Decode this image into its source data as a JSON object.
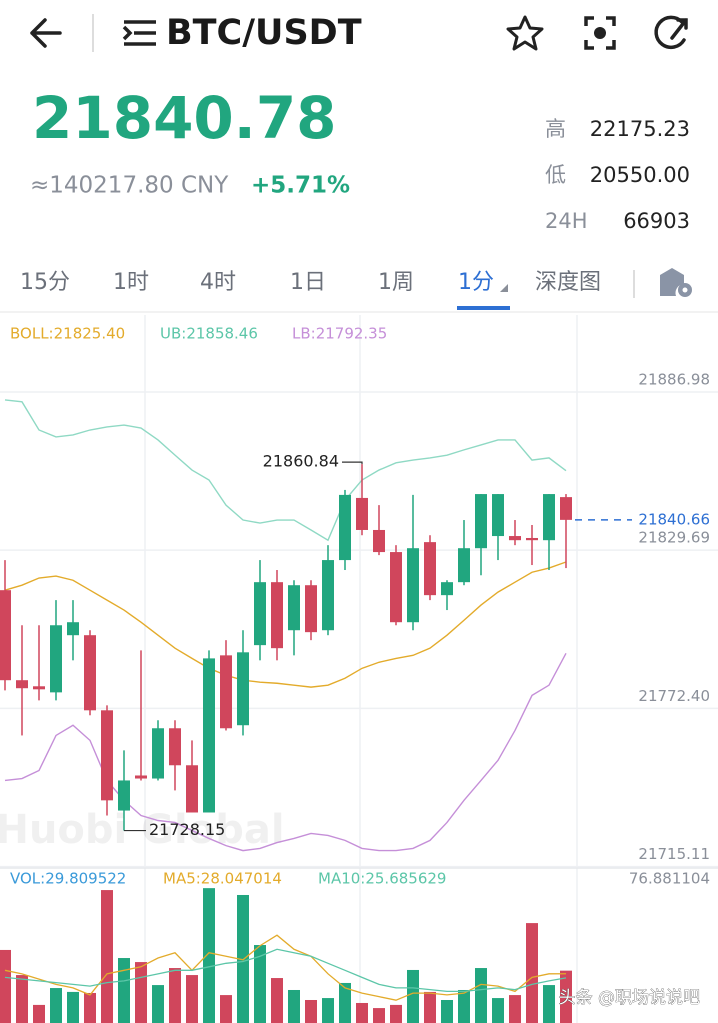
{
  "header": {
    "symbol": "BTC/USDT"
  },
  "ticker": {
    "price": "21840.78",
    "cny": "≈140217.80 CNY",
    "change": "+5.71%",
    "stats": [
      {
        "label": "高",
        "value": "22175.23"
      },
      {
        "label": "低",
        "value": "20550.00"
      },
      {
        "label": "24H",
        "value": "66903"
      }
    ]
  },
  "tabs": [
    "15分",
    "1时",
    "4时",
    "1日",
    "1周",
    "1分",
    "深度图"
  ],
  "watermark": "Huobi Global",
  "footer": "头条 @职场说说吧",
  "chart_data": {
    "type": "candlestick",
    "indicators": [
      {
        "label": "BOLL:21825.40",
        "color": "#e3ab2b"
      },
      {
        "label": "UB:21858.46",
        "color": "#5cc6a8"
      },
      {
        "label": "LB:21792.35",
        "color": "#c58fd8"
      }
    ],
    "ylim": [
      21714.6,
      21907.6
    ],
    "yticks": [
      21886.98,
      21829.69,
      {
        "value": 21772.4,
        "label": "21772.40"
      },
      21715.11
    ],
    "price_line": 21840.66,
    "max_label": "21860.84",
    "min_label": "21728.15",
    "up_color": "#21a67f",
    "down_color": "#d0465c",
    "open": [
      21815.2,
      21782.6,
      21780.4,
      21778.2,
      21798.9,
      21798.9,
      21771.7,
      21735.4,
      21748.1,
      21747.0,
      21765.2,
      21751.8,
      21734.7,
      21791.6,
      21766.3,
      21795.3,
      21818.1,
      21800.7,
      21817.0,
      21800.7,
      21826.1,
      21848.6,
      21837.0,
      21829.0,
      21803.6,
      21832.6,
      21813.4,
      21818.1,
      21830.4,
      21834.8,
      21834.8,
      21834.1,
      21833.3,
      21848.9
    ],
    "high": [
      21826.1,
      21802.5,
      21802.5,
      21811.6,
      21811.6,
      21800.7,
      21773.5,
      21757.2,
      21793.4,
      21768.1,
      21768.1,
      21760.8,
      21793.4,
      21797.1,
      21800.7,
      21826.1,
      21822.5,
      21818.8,
      21818.8,
      21831.5,
      21851.5,
      21860.84,
      21846.0,
      21831.5,
      21849.7,
      21835.1,
      21818.8,
      21840.6,
      21850.0,
      21850.0,
      21840.6,
      21838.8,
      21850.0,
      21850.0
    ],
    "low": [
      21778.9,
      21762.6,
      21775.3,
      21775.3,
      21789.8,
      21769.9,
      21733.6,
      21728.15,
      21746.3,
      21746.3,
      21742.7,
      21734.7,
      21734.7,
      21764.4,
      21762.6,
      21789.8,
      21789.8,
      21791.6,
      21797.1,
      21798.9,
      21822.5,
      21835.1,
      21827.9,
      21802.5,
      21800.7,
      21811.6,
      21808.0,
      21817.0,
      21820.6,
      21826.1,
      21831.5,
      21824.3,
      21822.5,
      21823.2
    ],
    "close": [
      21782.6,
      21779.7,
      21779.3,
      21802.5,
      21803.6,
      21771.7,
      21739.1,
      21746.3,
      21747.0,
      21765.2,
      21751.8,
      21734.7,
      21790.5,
      21765.2,
      21792.7,
      21818.1,
      21794.2,
      21817.0,
      21800.0,
      21826.1,
      21849.7,
      21837.0,
      21829.0,
      21803.6,
      21830.4,
      21813.4,
      21818.1,
      21830.4,
      21850.0,
      21850.0,
      21833.3,
      21833.3,
      21850.0,
      21840.66
    ],
    "lines": [
      {
        "color": "#e3ab2b",
        "values": [
          21815.2,
          21817.0,
          21819.6,
          21820.3,
          21818.8,
          21815.2,
          21811.6,
          21808.0,
          21803.6,
          21798.9,
          21794.2,
          21790.5,
          21786.9,
          21784.4,
          21782.6,
          21781.9,
          21781.5,
          21780.8,
          21780.1,
          21780.8,
          21783.3,
          21786.9,
          21789.1,
          21790.5,
          21791.6,
          21794.2,
          21798.9,
          21804.3,
          21809.8,
          21814.5,
          21818.1,
          21821.7,
          21823.2,
          21825.4
        ]
      },
      {
        "color": "#8fd9c4",
        "values": [
          21884.1,
          21883.4,
          21873.2,
          21870.7,
          21871.4,
          21873.2,
          21874.3,
          21875.0,
          21873.9,
          21869.6,
          21864.1,
          21858.7,
          21855.1,
          21846.0,
          21840.6,
          21839.5,
          21840.6,
          21840.6,
          21837.0,
          21833.3,
          21847.8,
          21855.1,
          21858.7,
          21861.3,
          21862.3,
          21863.1,
          21864.1,
          21866.0,
          21867.8,
          21869.6,
          21869.6,
          21862.3,
          21863.1,
          21858.46
        ]
      },
      {
        "color": "#c58fd8",
        "values": [
          21746.3,
          21747.0,
          21749.9,
          21762.6,
          21766.3,
          21760.8,
          21746.3,
          21739.1,
          21733.6,
          21731.8,
          21731.1,
          21728.2,
          21725.3,
          21722.7,
          21720.9,
          21721.7,
          21723.8,
          21725.3,
          21727.1,
          21726.4,
          21724.6,
          21721.7,
          21720.9,
          21720.9,
          21721.7,
          21724.6,
          21731.1,
          21739.1,
          21746.3,
          21753.6,
          21764.4,
          21777.1,
          21780.8,
          21792.35
        ]
      }
    ],
    "volume": {
      "labels": [
        {
          "label": "VOL:29.809522",
          "color": "#3a9ad9"
        },
        {
          "label": "MA5:28.047014",
          "color": "#e3ab2b"
        },
        {
          "label": "MA10:25.685629",
          "color": "#5cc6a8"
        }
      ],
      "ylim": [
        0,
        76.881104
      ],
      "yticks": [
        76.881104
      ],
      "values": [
        41.6,
        27.3,
        10.3,
        19.9,
        17.7,
        17.1,
        75.7,
        37.0,
        34.7,
        21.6,
        31.3,
        27.3,
        76.8,
        15.9,
        72.9,
        44.4,
        25.6,
        18.8,
        13.1,
        14.2,
        22.8,
        11.4,
        8.5,
        10.3,
        30.2,
        17.7,
        13.1,
        18.8,
        31.3,
        14.2,
        15.9,
        56.9,
        21.6,
        29.809522
      ],
      "lines": [
        {
          "color": "#e3ab2b",
          "values": [
            30,
            28,
            25,
            22,
            20,
            16,
            28,
            30,
            32,
            37,
            40,
            30,
            40,
            38,
            36,
            44,
            50,
            42,
            38,
            28,
            20,
            17,
            15,
            13,
            17,
            17,
            16,
            17,
            22,
            21,
            18,
            26,
            28,
            28.047014
          ]
        },
        {
          "color": "#5cc6a8",
          "values": [
            26,
            25,
            24,
            23,
            22,
            21,
            23,
            24,
            26,
            28,
            30,
            30,
            32,
            34,
            35,
            38,
            42,
            40,
            38,
            34,
            30,
            26,
            22,
            20,
            20,
            19,
            18,
            18,
            19,
            20,
            19,
            22,
            24,
            25.685629
          ]
        }
      ]
    }
  }
}
